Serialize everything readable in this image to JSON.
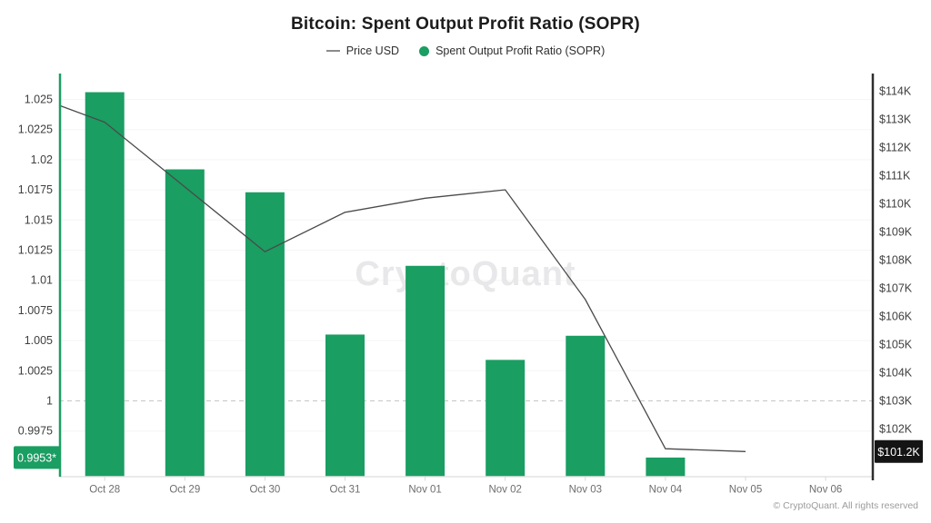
{
  "header": {
    "title": "Bitcoin: Spent Output Profit Ratio (SOPR)",
    "legend": [
      {
        "label": "Price USD",
        "swatch": "line",
        "color": "#8b8b8b"
      },
      {
        "label": "Spent Output Profit Ratio (SOPR)",
        "swatch": "dot",
        "color": "#1a9e62"
      }
    ]
  },
  "watermark": "CryptoQuant",
  "footer": {
    "copyright": "© CryptoQuant. All rights reserved"
  },
  "colors": {
    "bar_green": "#1a9e62",
    "price_line": "#4a4a4a",
    "left_axis_line": "#1a9e62",
    "right_axis_line": "#2e2e2e",
    "bottom_axis_line": "#e3e3e3",
    "gridline": "#f5f5f5",
    "dashed_gridline": "#c6c6c6",
    "x_tick": "#d9d9d9",
    "axis_label": "#3f3f3f",
    "date_label": "#6e6e6e",
    "watermark": "#e8e8ea",
    "sopr_badge_bg": "#1a9e62",
    "price_badge_bg": "#141414",
    "badge_text": "#ffffff"
  },
  "chart_data": {
    "type": "bar+line (dual axis)",
    "title": "Bitcoin: Spent Output Profit Ratio (SOPR)",
    "legend_position": "top center",
    "grid": "faint horizontal gridlines; dashed gridline at SOPR = 1",
    "categories": [
      "Oct 28",
      "Oct 29",
      "Oct 30",
      "Oct 31",
      "Nov 01",
      "Nov 02",
      "Nov 03",
      "Nov 04",
      "Nov 05",
      "Nov 06"
    ],
    "series": [
      {
        "name": "Spent Output Profit Ratio (SOPR)",
        "type": "bar",
        "axis": "left",
        "color": "#1a9e62",
        "values": [
          1.0256,
          1.0192,
          1.0173,
          1.0055,
          1.0112,
          1.0034,
          1.0054,
          0.9953,
          null,
          null
        ],
        "last_value_label": "0.9953*"
      },
      {
        "name": "Price USD",
        "type": "line",
        "axis": "right",
        "color": "#4a4a4a",
        "unit": "USD thousands",
        "edge_start_value": 113.5,
        "values": [
          112.9,
          110.6,
          108.3,
          109.7,
          110.2,
          110.5,
          106.6,
          101.3,
          101.2,
          null
        ],
        "last_value_label": "$101.2K"
      }
    ],
    "left_axis": {
      "side": "left",
      "dashed_gridline_at": 1,
      "ticks": [
        {
          "label": "1.025",
          "value": 1.025
        },
        {
          "label": "1.0225",
          "value": 1.0225
        },
        {
          "label": "1.02",
          "value": 1.02
        },
        {
          "label": "1.0175",
          "value": 1.0175
        },
        {
          "label": "1.015",
          "value": 1.015
        },
        {
          "label": "1.0125",
          "value": 1.0125
        },
        {
          "label": "1.01",
          "value": 1.01
        },
        {
          "label": "1.0075",
          "value": 1.0075
        },
        {
          "label": "1.005",
          "value": 1.005
        },
        {
          "label": "1.0025",
          "value": 1.0025
        },
        {
          "label": "1",
          "value": 1
        },
        {
          "label": "0.9975",
          "value": 0.9975
        }
      ],
      "badge": "0.9953*"
    },
    "right_axis": {
      "side": "right",
      "ticks": [
        {
          "label": "$114K",
          "value": 114
        },
        {
          "label": "$113K",
          "value": 113
        },
        {
          "label": "$112K",
          "value": 112
        },
        {
          "label": "$111K",
          "value": 111
        },
        {
          "label": "$110K",
          "value": 110
        },
        {
          "label": "$109K",
          "value": 109
        },
        {
          "label": "$108K",
          "value": 108
        },
        {
          "label": "$107K",
          "value": 107
        },
        {
          "label": "$106K",
          "value": 106
        },
        {
          "label": "$105K",
          "value": 105
        },
        {
          "label": "$104K",
          "value": 104
        },
        {
          "label": "$103K",
          "value": 103
        },
        {
          "label": "$102K",
          "value": 102
        },
        {
          "label": "$101K",
          "value": 101
        }
      ],
      "badge": "$101.2K"
    }
  }
}
